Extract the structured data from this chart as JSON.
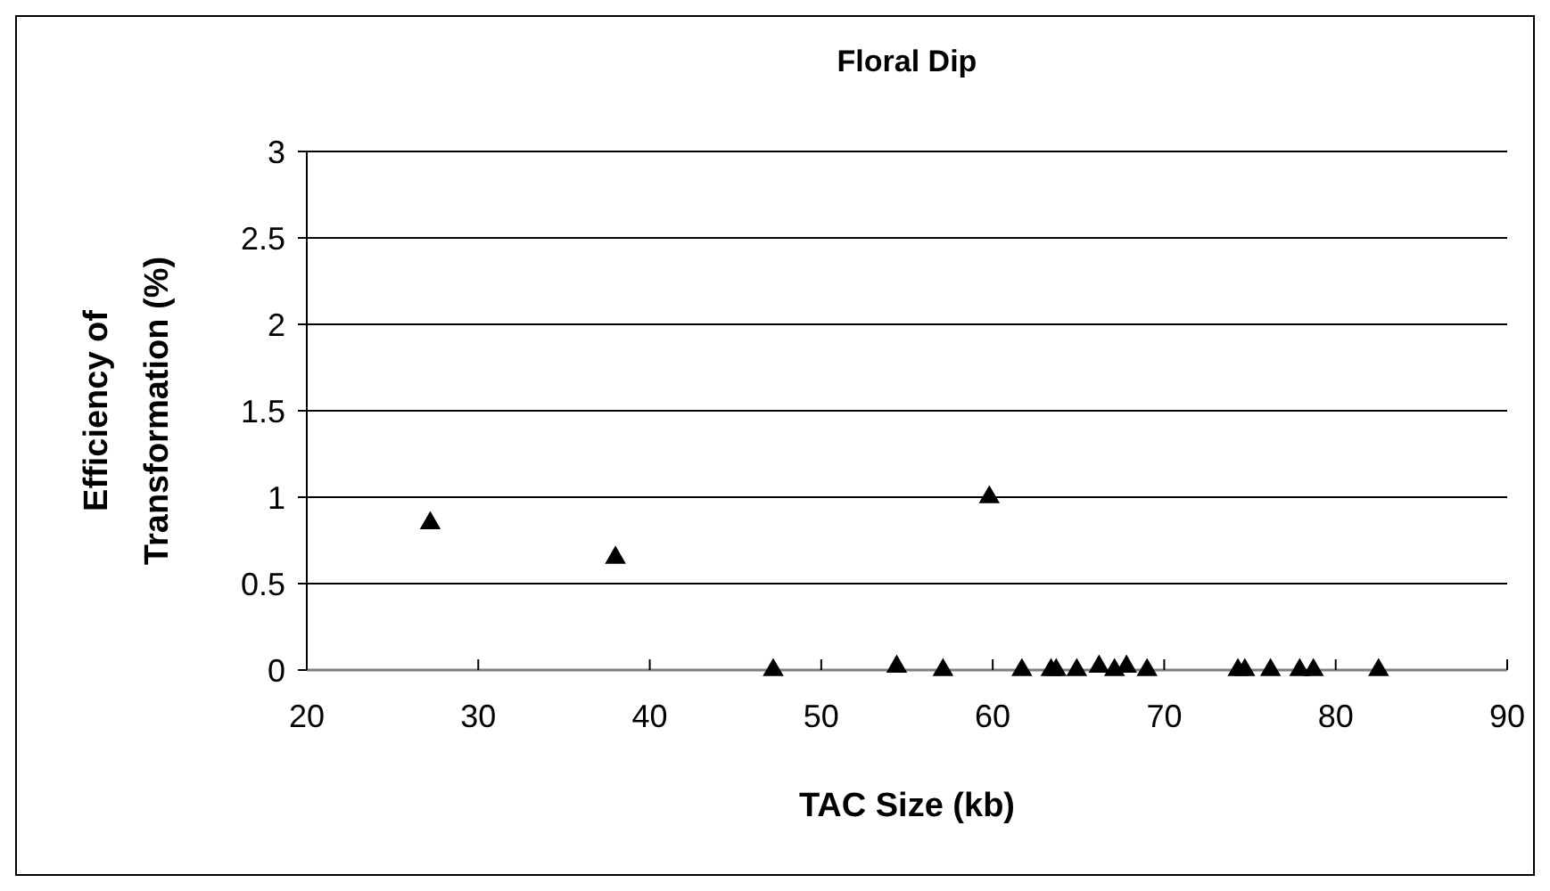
{
  "chart_data": {
    "type": "scatter",
    "title": "Floral Dip",
    "xlabel": "TAC Size (kb)",
    "ylabel": "Efficiency of Transformation (%)",
    "x": [
      27.2,
      38.0,
      47.2,
      54.4,
      57.1,
      59.8,
      61.7,
      63.4,
      63.7,
      64.9,
      66.2,
      67.1,
      67.8,
      69.0,
      74.3,
      74.7,
      76.2,
      77.9,
      78.7,
      82.5
    ],
    "values": [
      0.85,
      0.65,
      0,
      0.02,
      0,
      1.0,
      0,
      0,
      0,
      0,
      0.02,
      0,
      0.02,
      0,
      0,
      0,
      0,
      0,
      0,
      0
    ],
    "color": "#000000",
    "marker": "triangle",
    "xlim": [
      20,
      90
    ],
    "xticks": [
      20,
      30,
      40,
      50,
      60,
      70,
      80,
      90
    ],
    "ylim": [
      0,
      3
    ],
    "yticks": [
      0,
      0.5,
      1,
      1.5,
      2,
      2.5,
      3
    ],
    "grid": "y"
  }
}
